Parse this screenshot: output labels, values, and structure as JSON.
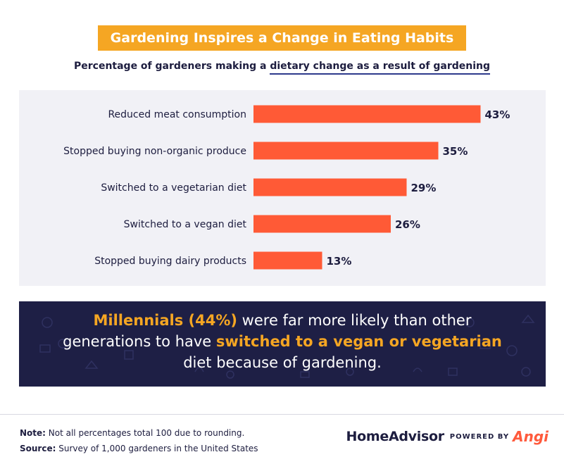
{
  "title": "Gardening Inspires a Change in Eating Habits",
  "subtitle_prefix": "Percentage of gardeners making a ",
  "subtitle_underlined": "dietary change as a result of gardening",
  "colors": {
    "accent": "#f5a623",
    "bar": "#ff5a36",
    "navy": "#1e1f45",
    "panel": "#f1f1f6"
  },
  "chart_data": {
    "type": "bar",
    "orientation": "horizontal",
    "categories": [
      "Reduced meat consumption",
      "Stopped buying non-organic produce",
      "Switched to a vegetarian diet",
      "Switched to a vegan diet",
      "Stopped buying dairy products"
    ],
    "values": [
      43,
      35,
      29,
      26,
      13
    ],
    "value_labels": [
      "43%",
      "35%",
      "29%",
      "26%",
      "13%"
    ],
    "unit": "%",
    "grid": false
  },
  "callout": {
    "hl1": "Millennials (44%)",
    "t1": " were far more likely than other generations to have ",
    "hl2": "switched to a vegan or vegetarian",
    "t2": " diet because of gardening."
  },
  "notes": {
    "note_label": "Note:",
    "note_text": " Not all percentages total 100 due to rounding.",
    "source_label": "Source:",
    "source_text": " Survey of 1,000 gardeners in the United States"
  },
  "brand": {
    "homeadvisor": "HomeAdvisor",
    "powered_by": "POWERED BY",
    "angi": "Angi"
  }
}
